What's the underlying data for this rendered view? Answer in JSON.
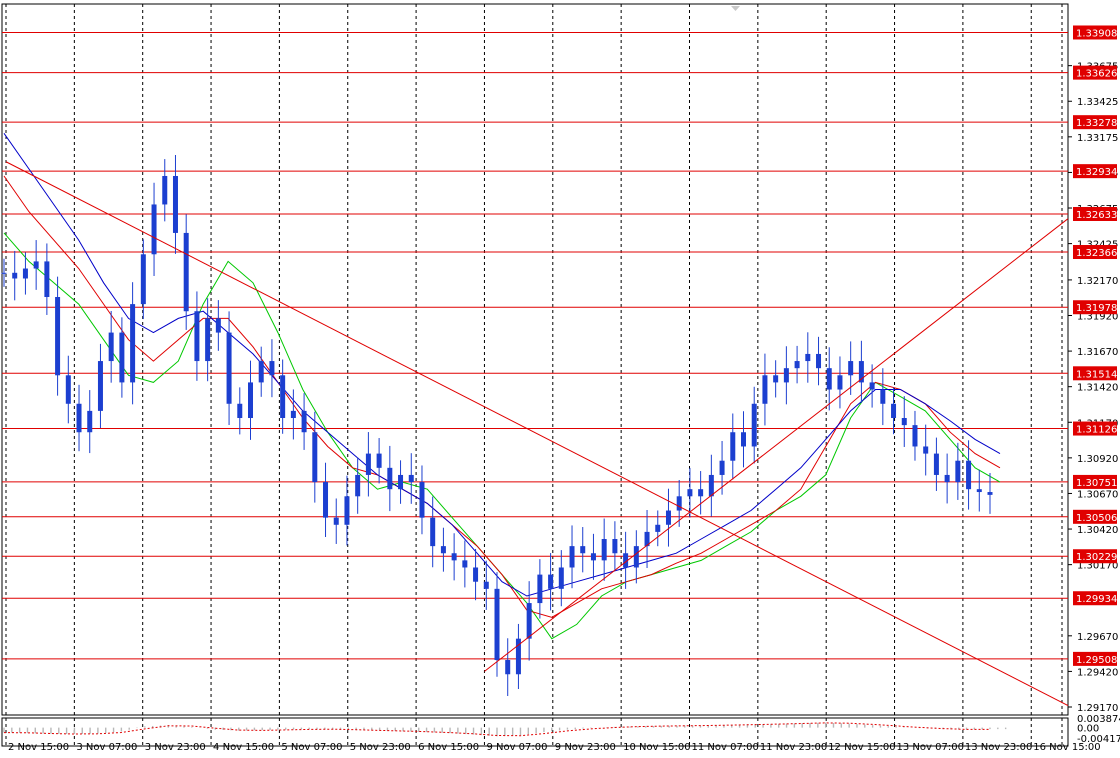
{
  "chart_data": {
    "type": "candlestick",
    "title": "",
    "price_axis": {
      "ticks": [
        "1.33675",
        "1.33425",
        "1.33175",
        "1.32925",
        "1.32675",
        "1.32425",
        "1.32170",
        "1.31920",
        "1.31670",
        "1.31420",
        "1.31170",
        "1.30920",
        "1.30670",
        "1.30420",
        "1.30170",
        "1.29670",
        "1.29420",
        "1.29170"
      ],
      "range": [
        1.2917,
        1.3408
      ]
    },
    "support_resistance_levels": [
      "1.33908",
      "1.33626",
      "1.33278",
      "1.32934",
      "1.32633",
      "1.32366",
      "1.31978",
      "1.31514",
      "1.31126",
      "1.30751",
      "1.30506",
      "1.30229",
      "1.29934",
      "1.29508"
    ],
    "time_axis": {
      "labels": [
        "2 Nov 15:00",
        "3 Nov 07:00",
        "3 Nov 23:00",
        "4 Nov 15:00",
        "5 Nov 07:00",
        "5 Nov 23:00",
        "6 Nov 15:00",
        "9 Nov 07:00",
        "9 Nov 23:00",
        "10 Nov 15:00",
        "11 Nov 07:00",
        "11 Nov 23:00",
        "12 Nov 15:00",
        "13 Nov 07:00",
        "13 Nov 23:00",
        "16 Nov 15:00"
      ]
    },
    "close_series": [
      1.3222,
      1.3218,
      1.3225,
      1.323,
      1.3205,
      1.315,
      1.313,
      1.311,
      1.3125,
      1.316,
      1.318,
      1.3145,
      1.32,
      1.3235,
      1.327,
      1.329,
      1.325,
      1.3195,
      1.316,
      1.319,
      1.318,
      1.313,
      1.312,
      1.3145,
      1.316,
      1.315,
      1.312,
      1.3125,
      1.311,
      1.3075,
      1.305,
      1.3045,
      1.3065,
      1.308,
      1.3095,
      1.3085,
      1.307,
      1.308,
      1.3075,
      1.305,
      1.303,
      1.3025,
      1.302,
      1.3015,
      1.3005,
      1.3,
      1.295,
      1.294,
      1.2965,
      1.299,
      1.301,
      1.3,
      1.3015,
      1.303,
      1.3025,
      1.302,
      1.3035,
      1.3025,
      1.3015,
      1.303,
      1.304,
      1.3045,
      1.3055,
      1.3065,
      1.307,
      1.3065,
      1.308,
      1.309,
      1.311,
      1.31,
      1.313,
      1.315,
      1.3145,
      1.3155,
      1.316,
      1.3165,
      1.3155,
      1.314,
      1.315,
      1.316,
      1.3145,
      1.314,
      1.313,
      1.312,
      1.3115,
      1.31,
      1.3095,
      1.308,
      1.3075,
      1.309,
      1.307,
      1.3068,
      1.3066
    ],
    "moving_averages": [
      {
        "color": "#00c800",
        "values": [
          1.325,
          1.323,
          1.3215,
          1.32,
          1.3175,
          1.315,
          1.3145,
          1.316,
          1.32,
          1.323,
          1.3215,
          1.318,
          1.314,
          1.311,
          1.3085,
          1.307,
          1.3075,
          1.307,
          1.305,
          1.303,
          1.301,
          1.299,
          1.2965,
          1.2975,
          1.2995,
          1.3005,
          1.301,
          1.3015,
          1.302,
          1.303,
          1.304,
          1.3055,
          1.3065,
          1.308,
          1.312,
          1.3145,
          1.3135,
          1.3125,
          1.3105,
          1.3085,
          1.3075
        ]
      },
      {
        "color": "#e00000",
        "values": [
          1.329,
          1.3265,
          1.3245,
          1.3225,
          1.32,
          1.3175,
          1.316,
          1.3175,
          1.319,
          1.319,
          1.317,
          1.3145,
          1.312,
          1.31,
          1.3085,
          1.308,
          1.307,
          1.306,
          1.3045,
          1.303,
          1.301,
          1.2985,
          1.298,
          1.299,
          1.3,
          1.3005,
          1.301,
          1.3018,
          1.3025,
          1.3035,
          1.3045,
          1.3055,
          1.307,
          1.31,
          1.313,
          1.3145,
          1.314,
          1.313,
          1.311,
          1.3095,
          1.3085
        ]
      },
      {
        "color": "#0000c8",
        "values": [
          1.332,
          1.3295,
          1.327,
          1.3245,
          1.3215,
          1.319,
          1.318,
          1.319,
          1.3195,
          1.318,
          1.3165,
          1.3145,
          1.3125,
          1.311,
          1.3095,
          1.308,
          1.307,
          1.306,
          1.3045,
          1.3025,
          1.3005,
          1.2995,
          1.3,
          1.3005,
          1.301,
          1.3015,
          1.302,
          1.3025,
          1.3035,
          1.3045,
          1.3055,
          1.307,
          1.3085,
          1.3105,
          1.3125,
          1.314,
          1.314,
          1.313,
          1.3118,
          1.3105,
          1.3095
        ]
      }
    ],
    "trendlines": [
      {
        "from": [
          "2 Nov 15:00",
          1.33
        ],
        "to": [
          "10 Nov 07:00",
          1.2918
        ],
        "color": "#e00000"
      },
      {
        "from": [
          "9 Nov 07:00",
          1.2942
        ],
        "to": [
          "16 Nov 23:00",
          1.326
        ],
        "color": "#e00000"
      }
    ],
    "oscillator": {
      "ticks": [
        "0.003874",
        "0.00",
        "-0.004175"
      ],
      "range": [
        -0.004175,
        0.003874
      ],
      "values": [
        -0.002,
        -0.0022,
        -0.0025,
        -0.0026,
        -0.0024,
        -0.0015,
        0.0005,
        0.001,
        0.0003,
        -0.0008,
        -0.0012,
        -0.001,
        -0.0008,
        -0.0006,
        -0.0007,
        -0.001,
        -0.0012,
        -0.0015,
        -0.0018,
        -0.0022,
        -0.0028,
        -0.0035,
        -0.003,
        -0.0018,
        -0.0008,
        -0.0002,
        0.0003,
        0.0005,
        0.0007,
        0.0008,
        0.0009,
        0.0011,
        0.0013,
        0.0015,
        0.0018,
        0.002,
        0.0016,
        0.001,
        0.0004,
        -0.0002,
        -0.0006,
        -0.0008,
        -0.0006
      ]
    },
    "colors": {
      "candle": "#1c3fd0",
      "level_line": "#e00000",
      "grid": "#000000",
      "signal_line": "#e00000",
      "histogram": "#b8b8b8"
    },
    "grid": true
  }
}
